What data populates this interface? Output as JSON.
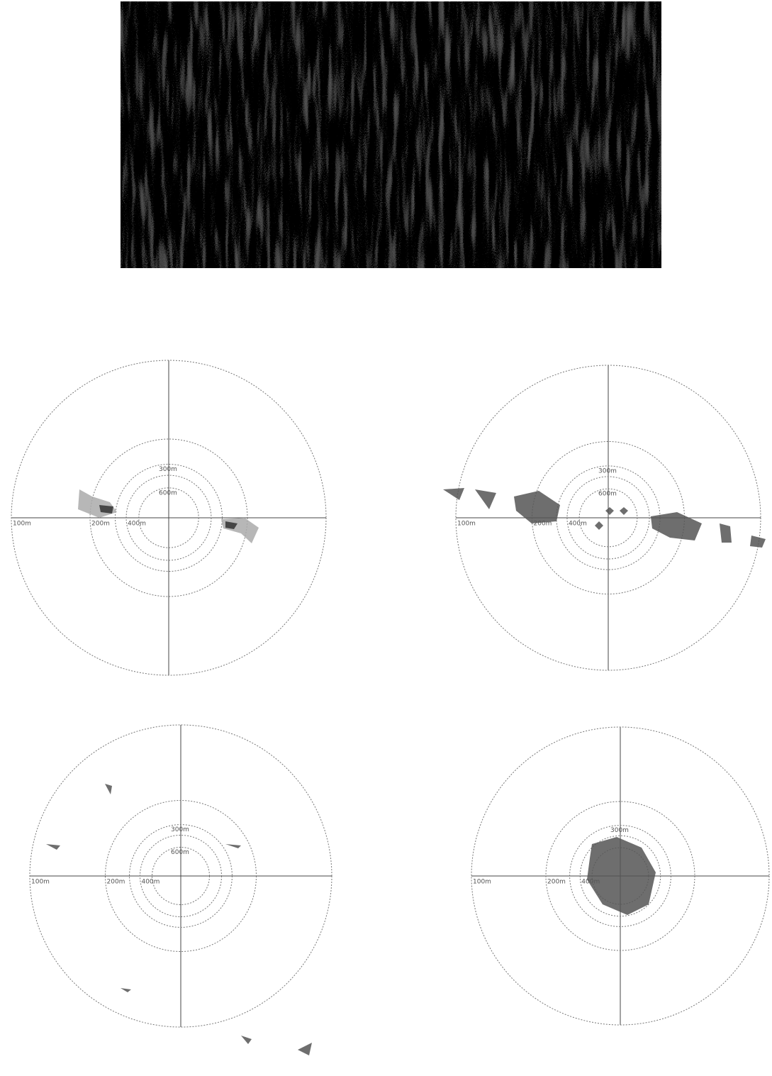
{
  "panels": [
    {
      "ring_labels": [
        "100m",
        "200m",
        "300m",
        "400m",
        "600m"
      ]
    },
    {
      "ring_labels": [
        "100m",
        "200m",
        "300m",
        "400m",
        "600m"
      ]
    },
    {
      "ring_labels": [
        "100m",
        "200m",
        "300m",
        "400m",
        "600m"
      ]
    },
    {
      "ring_labels": [
        "100m",
        "200m",
        "300m",
        "400m"
      ]
    }
  ]
}
